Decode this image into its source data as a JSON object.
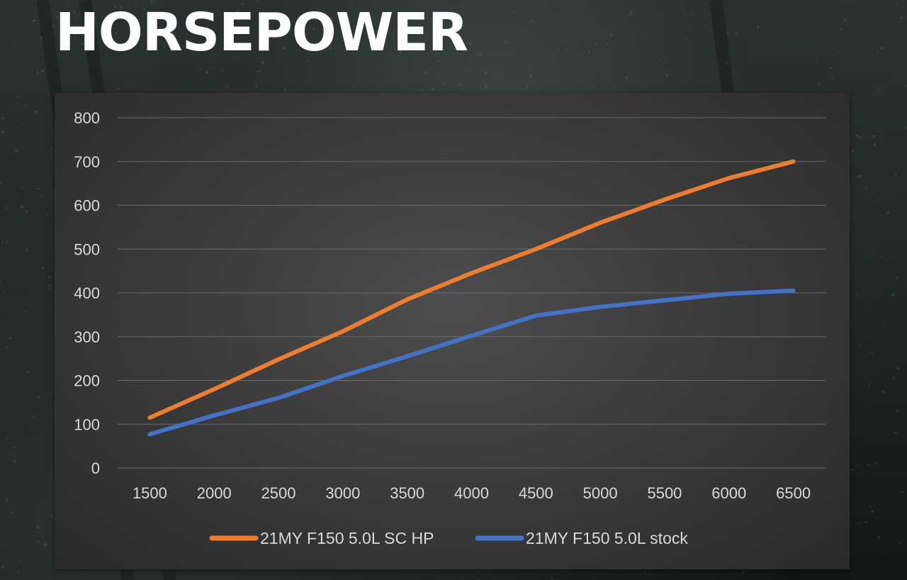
{
  "page": {
    "title": "HORSEPOWER"
  },
  "colors": {
    "series_1": "#ed7d31",
    "series_2": "#4472c4",
    "grid": "#6a6a6a",
    "text": "#d9d9d9"
  },
  "chart_data": {
    "type": "line",
    "title": "HORSEPOWER",
    "xlabel": "",
    "ylabel": "",
    "x": [
      1500,
      2000,
      2500,
      3000,
      3500,
      4000,
      4500,
      5000,
      5500,
      6000,
      6500
    ],
    "ylim": [
      0,
      800
    ],
    "yticks": [
      0,
      100,
      200,
      300,
      400,
      500,
      600,
      700,
      800
    ],
    "grid": true,
    "legend_position": "bottom",
    "series": [
      {
        "name": "21MY F150 5.0L SC HP",
        "color": "#ed7d31",
        "values": [
          115,
          180,
          248,
          312,
          385,
          445,
          500,
          560,
          613,
          662,
          700
        ]
      },
      {
        "name": "21MY F150 5.0L stock",
        "color": "#4472c4",
        "values": [
          77,
          120,
          160,
          210,
          255,
          302,
          348,
          368,
          383,
          398,
          405
        ]
      }
    ]
  }
}
